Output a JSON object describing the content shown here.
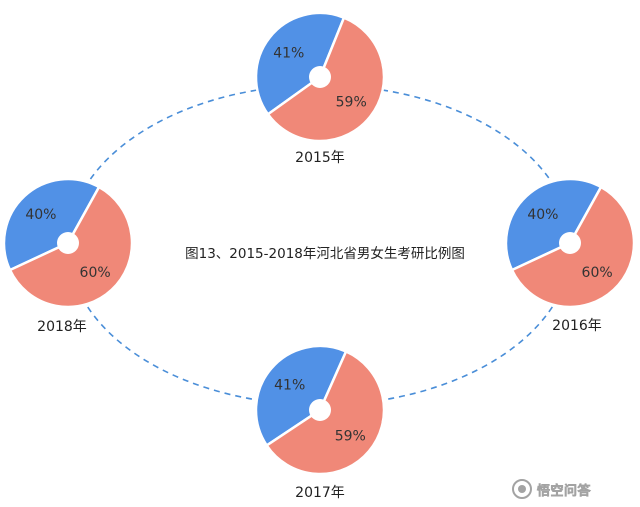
{
  "chart_data": {
    "type": "pie",
    "title": "图13、2015-2018年河北省男女生考研比例图",
    "charts": [
      {
        "label": "2015年",
        "slices": [
          {
            "value": 41,
            "label": "41%",
            "color": "#5191e6"
          },
          {
            "value": 59,
            "label": "59%",
            "color": "#f08878"
          }
        ]
      },
      {
        "label": "2016年",
        "slices": [
          {
            "value": 40,
            "label": "40%",
            "color": "#5191e6"
          },
          {
            "value": 60,
            "label": "60%",
            "color": "#f08878"
          }
        ]
      },
      {
        "label": "2017年",
        "slices": [
          {
            "value": 41,
            "label": "41%",
            "color": "#5191e6"
          },
          {
            "value": 59,
            "label": "59%",
            "color": "#f08878"
          }
        ]
      },
      {
        "label": "2018年",
        "slices": [
          {
            "value": 40,
            "label": "40%",
            "color": "#5191e6"
          },
          {
            "value": 60,
            "label": "60%",
            "color": "#f08878"
          }
        ]
      }
    ]
  },
  "watermark": {
    "text": "悟空问答"
  },
  "colors": {
    "blue": "#5191e6",
    "salmon": "#f08878",
    "ring": "#4a8ed8"
  }
}
